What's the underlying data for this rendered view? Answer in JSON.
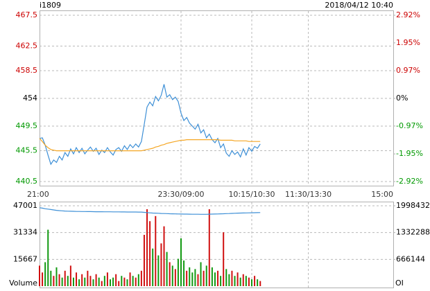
{
  "chart_data": [
    {
      "type": "line",
      "title": "i1809",
      "subtitle": "2018/04/12 10:40",
      "xlim": [
        0,
        375
      ],
      "xticks": [
        {
          "value": 0,
          "label": "21:00"
        },
        {
          "value": 150,
          "label": "23:30/09:00"
        },
        {
          "value": 225,
          "label": "10:15/10:30"
        },
        {
          "value": 285,
          "label": "11:30/13:30"
        },
        {
          "value": 375,
          "label": "15:00"
        }
      ],
      "ylim": [
        440.5,
        467.5
      ],
      "yticks": [
        440.5,
        445.5,
        449.5,
        454.0,
        458.5,
        462.5,
        467.5
      ],
      "y2lim": [
        -2.92,
        2.92
      ],
      "y2ticks": [
        {
          "value": -2.92,
          "label": "-2.92%"
        },
        {
          "value": -1.95,
          "label": "-1.95%"
        },
        {
          "value": -0.97,
          "label": "-0.97%"
        },
        {
          "value": 0,
          "label": "0%"
        },
        {
          "value": 0.97,
          "label": "0.97%"
        },
        {
          "value": 1.95,
          "label": "1.95%"
        },
        {
          "value": 2.92,
          "label": "2.92%"
        }
      ],
      "up_color": "#cc0000",
      "down_color": "#009900",
      "flat_color": "#000000",
      "grid": true,
      "x": [
        0,
        3,
        6,
        9,
        12,
        15,
        18,
        21,
        24,
        27,
        30,
        33,
        36,
        39,
        42,
        45,
        48,
        51,
        54,
        57,
        60,
        63,
        66,
        69,
        72,
        75,
        78,
        81,
        84,
        87,
        90,
        93,
        96,
        99,
        102,
        105,
        108,
        111,
        114,
        117,
        120,
        123,
        126,
        129,
        132,
        135,
        138,
        141,
        144,
        147,
        150,
        153,
        156,
        159,
        162,
        165,
        168,
        171,
        174,
        177,
        180,
        183,
        186,
        189,
        192,
        195,
        198,
        201,
        204,
        207,
        210,
        213,
        216,
        219,
        222,
        225,
        228,
        231,
        234
      ],
      "series": [
        {
          "color": "#3d8fd6",
          "values": [
            447.5,
            447.6,
            446.4,
            444.8,
            443.3,
            444.0,
            443.6,
            444.6,
            444.0,
            445.2,
            444.6,
            445.8,
            445.0,
            446.0,
            445.2,
            445.9,
            445.0,
            445.6,
            446.1,
            445.4,
            445.9,
            444.9,
            445.6,
            445.2,
            446.0,
            445.3,
            444.8,
            445.7,
            446.0,
            445.4,
            446.3,
            445.7,
            446.5,
            446.0,
            446.6,
            446.1,
            447.0,
            449.8,
            452.6,
            453.4,
            452.8,
            454.3,
            453.6,
            454.5,
            456.3,
            454.2,
            454.6,
            453.8,
            454.2,
            453.5,
            451.6,
            450.4,
            450.9,
            450.0,
            449.5,
            449.0,
            449.8,
            448.4,
            448.9,
            447.6,
            448.2,
            447.3,
            446.8,
            447.5,
            446.0,
            446.6,
            445.1,
            444.6,
            445.5,
            444.9,
            445.3,
            444.5,
            445.8,
            444.8,
            446.0,
            445.4,
            446.2,
            445.9,
            446.6
          ]
        },
        {
          "color": "#f5a623",
          "values": [
            447.5,
            447.0,
            446.4,
            446.0,
            445.7,
            445.6,
            445.5,
            445.5,
            445.5,
            445.5,
            445.5,
            445.5,
            445.5,
            445.5,
            445.5,
            445.5,
            445.5,
            445.5,
            445.5,
            445.5,
            445.5,
            445.5,
            445.5,
            445.5,
            445.5,
            445.5,
            445.5,
            445.5,
            445.5,
            445.5,
            445.5,
            445.5,
            445.5,
            445.5,
            445.5,
            445.5,
            445.5,
            445.6,
            445.7,
            445.8,
            445.9,
            446.1,
            446.2,
            446.4,
            446.5,
            446.7,
            446.8,
            446.9,
            447.0,
            447.1,
            447.2,
            447.2,
            447.3,
            447.3,
            447.3,
            447.3,
            447.3,
            447.3,
            447.3,
            447.3,
            447.3,
            447.3,
            447.3,
            447.3,
            447.2,
            447.2,
            447.2,
            447.2,
            447.2,
            447.1,
            447.1,
            447.1,
            447.1,
            447.1,
            447.0,
            447.0,
            447.0,
            447.0,
            447.0
          ]
        }
      ]
    },
    {
      "type": "bar",
      "ylabel": "Volume",
      "y2label": "OI",
      "xlim": [
        0,
        375
      ],
      "ylim": [
        0,
        47001
      ],
      "yticks": [
        15667,
        31334,
        47001
      ],
      "y2lim": [
        0,
        1998432
      ],
      "y2ticks": [
        666144,
        1332288,
        1998432
      ],
      "x": [
        0,
        3,
        6,
        9,
        12,
        15,
        18,
        21,
        24,
        27,
        30,
        33,
        36,
        39,
        42,
        45,
        48,
        51,
        54,
        57,
        60,
        63,
        66,
        69,
        72,
        75,
        78,
        81,
        84,
        87,
        90,
        93,
        96,
        99,
        102,
        105,
        108,
        111,
        114,
        117,
        120,
        123,
        126,
        129,
        132,
        135,
        138,
        141,
        144,
        147,
        150,
        153,
        156,
        159,
        162,
        165,
        168,
        171,
        174,
        177,
        180,
        183,
        186,
        189,
        192,
        195,
        198,
        201,
        204,
        207,
        210,
        213,
        216,
        219,
        222,
        225,
        228,
        231,
        234
      ],
      "values": [
        12000,
        8000,
        14000,
        33000,
        9000,
        6000,
        11000,
        7000,
        5000,
        9000,
        6000,
        12000,
        5000,
        8000,
        4000,
        7000,
        5000,
        9000,
        6000,
        4000,
        7000,
        5000,
        3000,
        6000,
        8000,
        4000,
        5000,
        7000,
        3000,
        6000,
        5000,
        4000,
        8000,
        6000,
        5000,
        7000,
        9000,
        30000,
        45000,
        38000,
        22000,
        41000,
        18000,
        25000,
        35000,
        20000,
        14000,
        12000,
        10000,
        16000,
        28000,
        15000,
        9000,
        11000,
        8000,
        10000,
        7000,
        14000,
        9000,
        12000,
        45000,
        11000,
        8000,
        9000,
        6000,
        31500,
        10000,
        7000,
        9000,
        6000,
        8000,
        5000,
        7000,
        6000,
        5000,
        4000,
        6000,
        4000,
        3000
      ],
      "colors": [
        "#d01010",
        "#d01010",
        "#119911",
        "#119911",
        "#119911",
        "#d01010",
        "#119911",
        "#d01010",
        "#119911",
        "#d01010",
        "#119911",
        "#d01010",
        "#119911",
        "#d01010",
        "#119911",
        "#d01010",
        "#119911",
        "#d01010",
        "#d01010",
        "#119911",
        "#d01010",
        "#119911",
        "#d01010",
        "#119911",
        "#d01010",
        "#119911",
        "#119911",
        "#d01010",
        "#d01010",
        "#119911",
        "#d01010",
        "#119911",
        "#d01010",
        "#119911",
        "#d01010",
        "#119911",
        "#d01010",
        "#d01010",
        "#d01010",
        "#d01010",
        "#119911",
        "#d01010",
        "#119911",
        "#d01010",
        "#d01010",
        "#119911",
        "#d01010",
        "#119911",
        "#d01010",
        "#119911",
        "#119911",
        "#119911",
        "#d01010",
        "#119911",
        "#119911",
        "#119911",
        "#d01010",
        "#119911",
        "#d01010",
        "#119911",
        "#d01010",
        "#119911",
        "#119911",
        "#d01010",
        "#119911",
        "#d01010",
        "#119911",
        "#119911",
        "#d01010",
        "#119911",
        "#d01010",
        "#119911",
        "#d01010",
        "#119911",
        "#d01010",
        "#119911",
        "#d01010",
        "#119911",
        "#d01010"
      ],
      "oi": {
        "color": "#3d8fd6",
        "values": [
          1950000,
          1940000,
          1925000,
          1915000,
          1905000,
          1895000,
          1885000,
          1878000,
          1872000,
          1868000,
          1864000,
          1862000,
          1860000,
          1858000,
          1857000,
          1856000,
          1855000,
          1854000,
          1853000,
          1852000,
          1851000,
          1850000,
          1850000,
          1849000,
          1848000,
          1848000,
          1847000,
          1846000,
          1846000,
          1845000,
          1845000,
          1844000,
          1844000,
          1843000,
          1843000,
          1842000,
          1842000,
          1835000,
          1828000,
          1822000,
          1818000,
          1815000,
          1812000,
          1808000,
          1805000,
          1803000,
          1800000,
          1798000,
          1797000,
          1795000,
          1793000,
          1792000,
          1791000,
          1790000,
          1789000,
          1788000,
          1788000,
          1787000,
          1787000,
          1786000,
          1790000,
          1792000,
          1793000,
          1795000,
          1798000,
          1800000,
          1803000,
          1806000,
          1809000,
          1812000,
          1815000,
          1817000,
          1819000,
          1821000,
          1823000,
          1825000,
          1827000,
          1828000,
          1830000
        ]
      }
    }
  ]
}
